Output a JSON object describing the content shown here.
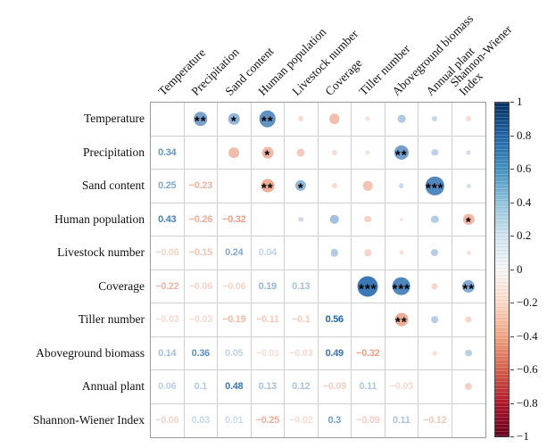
{
  "chart_data": {
    "type": "heatmap",
    "subtype": "correlation-matrix-corrplot",
    "variables": [
      "Temperature",
      "Precipitation",
      "Sand content",
      "Human population",
      "Livestock number",
      "Coverage",
      "Tiller number",
      "Aboveground biomass",
      "Annual plant",
      "Shannon-Wiener Index"
    ],
    "column_labels": [
      "Temperature",
      "Precipitation",
      "Sand content",
      "Human population",
      "Livestock number",
      "Coverage",
      "Tiller number",
      "Aboveground biomass",
      "Annual plant",
      "Shannon-Wiener\nIndex"
    ],
    "layout_note": "lower triangle shows coefficients as numbers, upper triangle shows circles sized/colored by |r| with significance stars",
    "correlations": [
      [
        1,
        0,
        "0.34",
        "**"
      ],
      [
        2,
        0,
        "0.25",
        "*"
      ],
      [
        2,
        1,
        "-0.23",
        ""
      ],
      [
        3,
        0,
        "0.43",
        "**"
      ],
      [
        3,
        1,
        "-0.26",
        "*"
      ],
      [
        3,
        2,
        "-0.32",
        "**"
      ],
      [
        4,
        0,
        "-0.06",
        ""
      ],
      [
        4,
        1,
        "-0.15",
        ""
      ],
      [
        4,
        2,
        "0.24",
        "*"
      ],
      [
        4,
        3,
        "0.04",
        ""
      ],
      [
        5,
        0,
        "-0.22",
        ""
      ],
      [
        5,
        1,
        "-0.06",
        ""
      ],
      [
        5,
        2,
        "-0.06",
        ""
      ],
      [
        5,
        3,
        "0.19",
        ""
      ],
      [
        5,
        4,
        "0.13",
        ""
      ],
      [
        6,
        0,
        "-0.03",
        ""
      ],
      [
        6,
        1,
        "-0.03",
        ""
      ],
      [
        6,
        2,
        "-0.19",
        ""
      ],
      [
        6,
        3,
        "-0.11",
        ""
      ],
      [
        6,
        4,
        "-0.1",
        ""
      ],
      [
        6,
        5,
        "0.56",
        "***"
      ],
      [
        7,
        0,
        "0.14",
        ""
      ],
      [
        7,
        1,
        "0.36",
        "**"
      ],
      [
        7,
        2,
        "0.05",
        ""
      ],
      [
        7,
        3,
        "-0.01",
        ""
      ],
      [
        7,
        4,
        "-0.03",
        ""
      ],
      [
        7,
        5,
        "0.49",
        "***"
      ],
      [
        7,
        6,
        "-0.32",
        "**"
      ],
      [
        8,
        0,
        "0.06",
        ""
      ],
      [
        8,
        1,
        "0.1",
        ""
      ],
      [
        8,
        2,
        "0.48",
        "***"
      ],
      [
        8,
        3,
        "0.13",
        ""
      ],
      [
        8,
        4,
        "0.12",
        ""
      ],
      [
        8,
        5,
        "-0.09",
        ""
      ],
      [
        8,
        6,
        "0.11",
        ""
      ],
      [
        8,
        7,
        "-0.03",
        ""
      ],
      [
        9,
        0,
        "-0.06",
        ""
      ],
      [
        9,
        1,
        "0.03",
        ""
      ],
      [
        9,
        2,
        "0.01",
        ""
      ],
      [
        9,
        3,
        "-0.25",
        "*"
      ],
      [
        9,
        4,
        "-0.02",
        ""
      ],
      [
        9,
        5,
        "0.3",
        "**"
      ],
      [
        9,
        6,
        "-0.09",
        ""
      ],
      [
        9,
        7,
        "0.11",
        ""
      ],
      [
        9,
        8,
        "-0.12",
        ""
      ]
    ],
    "colorbar": {
      "min": -1,
      "max": 1,
      "tick_labels": [
        "1",
        "0.8",
        "0.6",
        "0.4",
        "0.2",
        "0",
        "−0.2",
        "−0.4",
        "−0.6",
        "−0.8",
        "−1"
      ],
      "position": "right",
      "top_color_hex": "#053061",
      "mid_color_hex": "#f7f7f7",
      "bottom_color_hex": "#67001f"
    },
    "colors": {
      "positive_strong": "#2166ac",
      "negative_strong": "#e2714c",
      "grid_line": "#cfcfcf",
      "star": "#000000"
    },
    "legend_position": "right",
    "grid": true,
    "title": ""
  }
}
